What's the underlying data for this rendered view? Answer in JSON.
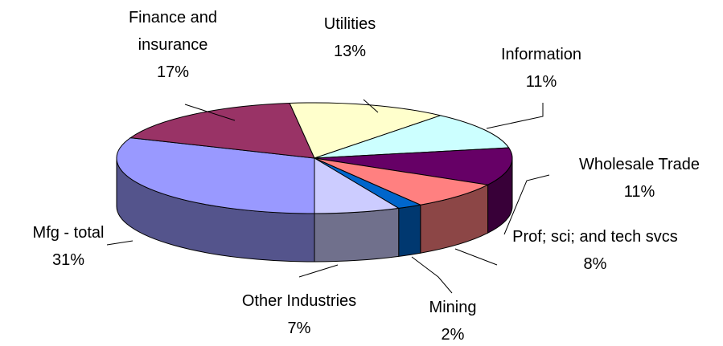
{
  "chart_data": {
    "type": "pie3d",
    "categories": [
      "Mfg - total",
      "Finance and insurance",
      "Utilities",
      "Information",
      "Wholesale Trade",
      "Prof; sci; and tech svcs",
      "Mining",
      "Other Industries"
    ],
    "values": [
      31,
      17,
      13,
      11,
      11,
      8,
      2,
      7
    ],
    "value_labels": [
      "31%",
      "17%",
      "13%",
      "11%",
      "11%",
      "8%",
      "2%",
      "7%"
    ],
    "colors": [
      "#9999ff",
      "#993366",
      "#ffffcc",
      "#ccffff",
      "#660066",
      "#ff8080",
      "#0066cc",
      "#ccccff"
    ]
  }
}
